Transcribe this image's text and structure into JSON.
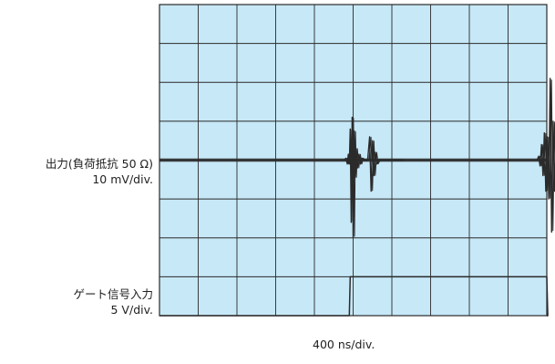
{
  "channel_output": {
    "label": "出力(負荷抵抗 50 Ω)",
    "scale": "10 mV/div."
  },
  "channel_gate": {
    "label": "ゲート信号入力",
    "scale": "5 V/div."
  },
  "timebase": "400 ns/div.",
  "colors": {
    "screen_bg": "#c7e8f7",
    "grid": "#2a2a2a",
    "trace": "#2b2b2b"
  },
  "chart_data": {
    "type": "line",
    "x_divisions": 10,
    "y_divisions": 8,
    "grid": true,
    "x_unit": "ns",
    "ns_per_div": 400,
    "series": [
      {
        "name": "出力(負荷抵抗 50 Ω)",
        "baseline_div": 4.0,
        "bursts": [
          {
            "start_ns": 1910,
            "end_ns": 2530,
            "points_ns_div": [
              [
                1910,
                4.0
              ],
              [
                1925,
                4.05
              ],
              [
                1940,
                3.9
              ],
              [
                1950,
                4.15
              ],
              [
                1960,
                3.9
              ],
              [
                1970,
                4.8
              ],
              [
                1980,
                2.4
              ],
              [
                1990,
                5.1
              ],
              [
                2000,
                2.0
              ],
              [
                2010,
                4.75
              ],
              [
                2020,
                3.55
              ],
              [
                2030,
                4.3
              ],
              [
                2045,
                3.8
              ],
              [
                2060,
                4.15
              ],
              [
                2075,
                3.9
              ],
              [
                2090,
                4.05
              ],
              [
                2110,
                4.0
              ],
              [
                2150,
                4.0
              ],
              [
                2170,
                4.6
              ],
              [
                2185,
                3.2
              ],
              [
                2200,
                4.5
              ],
              [
                2215,
                3.6
              ],
              [
                2230,
                4.2
              ],
              [
                2245,
                3.9
              ],
              [
                2265,
                4.0
              ],
              [
                2530,
                4.0
              ]
            ]
          },
          {
            "start_ns": 3900,
            "end_ns": 4670,
            "points_ns_div": [
              [
                3900,
                4.0
              ],
              [
                3915,
                4.1
              ],
              [
                3930,
                3.85
              ],
              [
                3945,
                4.4
              ],
              [
                3960,
                3.6
              ],
              [
                3975,
                4.7
              ],
              [
                3990,
                3.2
              ],
              [
                4005,
                4.6
              ],
              [
                4020,
                3.0
              ],
              [
                4035,
                6.1
              ],
              [
                4050,
                2.15
              ],
              [
                4065,
                5.0
              ],
              [
                4080,
                3.2
              ],
              [
                4095,
                4.6
              ],
              [
                4110,
                3.5
              ],
              [
                4125,
                4.4
              ],
              [
                4140,
                3.65
              ],
              [
                4155,
                4.25
              ],
              [
                4170,
                3.85
              ],
              [
                4185,
                4.15
              ],
              [
                4200,
                3.95
              ],
              [
                4220,
                4.05
              ],
              [
                4240,
                3.95
              ],
              [
                4260,
                4.04
              ],
              [
                4280,
                3.97
              ],
              [
                4300,
                4.03
              ],
              [
                4320,
                3.98
              ],
              [
                4340,
                4.02
              ],
              [
                4360,
                3.99
              ],
              [
                4380,
                4.01
              ],
              [
                4400,
                4.0
              ],
              [
                4670,
                4.0
              ]
            ]
          }
        ]
      },
      {
        "name": "ゲート信号入力",
        "points_ns_div": [
          [
            0,
            0.0
          ],
          [
            1960,
            0.0
          ],
          [
            1970,
            1.0
          ],
          [
            4000,
            1.0
          ],
          [
            4010,
            0.0
          ],
          [
            4000,
            0.0
          ]
        ],
        "low_div": 0.0,
        "high_div": 1.0,
        "rise_ns": 1960,
        "fall_ns": 4000,
        "end_ns": 4000
      }
    ]
  }
}
